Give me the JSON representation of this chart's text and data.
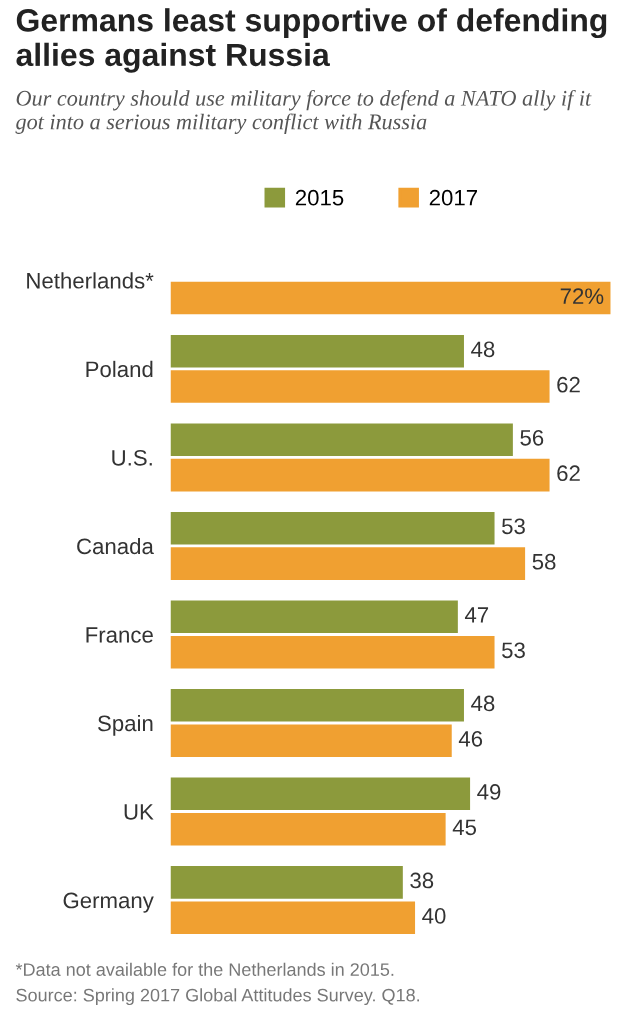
{
  "chart_data": {
    "type": "bar",
    "orientation": "horizontal",
    "title": "Germans least supportive of defending allies against Russia",
    "subtitle": "Our country should use military force to defend a NATO ally if it got into a serious military conflict with Russia",
    "categories": [
      "Netherlands*",
      "Poland",
      "U.S.",
      "Canada",
      "France",
      "Spain",
      "UK",
      "Germany"
    ],
    "series": [
      {
        "name": "2015",
        "color": "#8c9a3c",
        "values": [
          null,
          48,
          56,
          53,
          47,
          48,
          49,
          38
        ],
        "value_labels": [
          null,
          "48",
          "56",
          "53",
          "47",
          "48",
          "49",
          "38"
        ]
      },
      {
        "name": "2017",
        "color": "#f0a031",
        "values": [
          72,
          62,
          62,
          58,
          53,
          46,
          45,
          40
        ],
        "value_labels": [
          "72%",
          "62",
          "62",
          "58",
          "53",
          "46",
          "45",
          "40"
        ]
      }
    ],
    "legend": "top",
    "grid": false,
    "tick_labels": "y",
    "annotations": [
      "*Data not available for the Netherlands in 2015.",
      "Source: Spring 2017 Global Attitudes Survey. Q18."
    ]
  }
}
